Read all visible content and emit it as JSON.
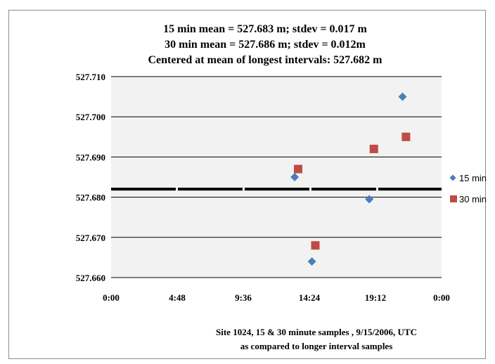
{
  "chart_data": {
    "type": "scatter",
    "title_lines": [
      "15 min mean = 527.683 m; stdev = 0.017 m",
      "30 min mean = 527.686 m; stdev = 0.012m",
      "Centered at mean of longest intervals: 527.682 m"
    ],
    "x_tick_labels": [
      "0:00",
      "4:48",
      "9:36",
      "14:24",
      "19:12",
      "0:00"
    ],
    "x_ticks_hours": [
      0,
      4.8,
      9.6,
      14.4,
      19.2,
      24
    ],
    "y_tick_labels": [
      "527.710",
      "527.700",
      "527.690",
      "527.680",
      "527.670",
      "527.660"
    ],
    "ylim": [
      527.66,
      527.71
    ],
    "xlim_hours": [
      0,
      24
    ],
    "grid": "horizontal",
    "reference_line": {
      "y": 527.682,
      "style": "thick-dashed"
    },
    "series": [
      {
        "name": "15 min",
        "marker": "diamond",
        "color": "#4a7ebb",
        "points": [
          {
            "x": "13:20",
            "y": 527.685
          },
          {
            "x": "14:35",
            "y": 527.664
          },
          {
            "x": "18:45",
            "y": 527.6795
          },
          {
            "x": "21:10",
            "y": 527.705
          }
        ]
      },
      {
        "name": "30 min",
        "marker": "square",
        "color": "#be4b48",
        "points": [
          {
            "x": "13:35",
            "y": 527.687
          },
          {
            "x": "14:50",
            "y": 527.668
          },
          {
            "x": "19:05",
            "y": 527.692
          },
          {
            "x": "21:25",
            "y": 527.695
          }
        ]
      }
    ],
    "legend_position": "right",
    "caption_lines": [
      "Site 1024, 15 & 30 minute samples , 9/15/2006, UTC",
      "as compared to longer interval samples"
    ]
  }
}
